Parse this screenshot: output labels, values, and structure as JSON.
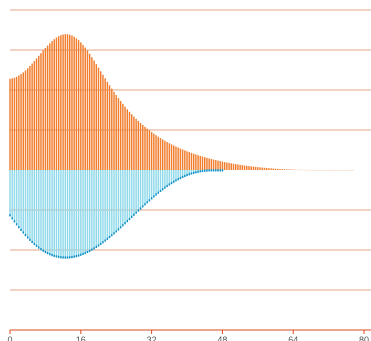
{
  "chart_data": {
    "type": "bar",
    "title": "",
    "xlabel": "",
    "ylabel": "",
    "xlim": [
      0,
      80
    ],
    "grid": true,
    "x_ticks": [
      "0",
      "16",
      "32",
      "48",
      "64",
      "80"
    ],
    "series": [
      {
        "x_start": 0,
        "x_step": 0.5,
        "values": [
          0.3442,
          0.3456,
          0.3482,
          0.3518,
          0.3564,
          0.362,
          0.3685,
          0.3758,
          0.3838,
          0.3925,
          0.4016,
          0.4112,
          0.421,
          0.431,
          0.441,
          0.4509,
          0.4605,
          0.4697,
          0.4784,
          0.4864,
          0.4935,
          0.4997,
          0.5048,
          0.5087,
          0.5113,
          0.5125,
          0.5123,
          0.5106,
          0.5075,
          0.503,
          0.4971,
          0.49,
          0.4816,
          0.4721,
          0.4617,
          0.4504,
          0.4384,
          0.4258,
          0.4128,
          0.3995,
          0.3861,
          0.3726,
          0.3591,
          0.3457,
          0.3326,
          0.3196,
          0.307,
          0.2948,
          0.2829,
          0.2714,
          0.2603,
          0.2495,
          0.2392,
          0.2293,
          0.2197,
          0.2106,
          0.2018,
          0.1933,
          0.1852,
          0.1774,
          0.17,
          0.1628,
          0.156,
          0.1494,
          0.1431,
          0.1371,
          0.1313,
          0.1257,
          0.1204,
          0.1153,
          0.1103,
          0.1056,
          0.1011,
          0.0968,
          0.0926,
          0.0886,
          0.0847,
          0.081,
          0.0774,
          0.074,
          0.0707,
          0.0675,
          0.0644,
          0.0615,
          0.0586,
          0.0559,
          0.0533,
          0.0507,
          0.0483,
          0.0459,
          0.0436,
          0.0415,
          0.0393,
          0.0373,
          0.0354,
          0.0335,
          0.0317,
          0.0299,
          0.0283,
          0.0267,
          0.0251,
          0.0236,
          0.0222,
          0.0208,
          0.0195,
          0.0182,
          0.017,
          0.0159,
          0.0148,
          0.0137,
          0.0127,
          0.0117,
          0.0108,
          0.0099,
          0.0091,
          0.0083,
          0.0075,
          0.0068,
          0.0061,
          0.0055,
          0.0049,
          0.0043,
          0.0038,
          0.0033,
          0.0029,
          0.0025,
          0.0021,
          0.0018,
          0.0015,
          0.0012,
          0.001,
          0.0008,
          0.0006,
          0.0005,
          0.0004,
          0.0003,
          0.0002,
          0.0002,
          0.0001,
          0.0001,
          0.0001,
          0.0001,
          0.0001,
          0.0001,
          0.0001,
          0.0001,
          0.0001,
          0.0001,
          0.0001,
          0.0001,
          0.0001,
          0.0001,
          0.0001,
          0.0001,
          0.0001,
          0.0001
        ],
        "color": "#f07c2c"
      },
      {
        "x_start": 0,
        "x_step": 0.5,
        "values": [
          -0.175,
          -0.1865,
          -0.1978,
          -0.2089,
          -0.2196,
          -0.23,
          -0.24,
          -0.2496,
          -0.2587,
          -0.2674,
          -0.2755,
          -0.2832,
          -0.2903,
          -0.2969,
          -0.303,
          -0.3085,
          -0.3135,
          -0.3179,
          -0.3218,
          -0.3252,
          -0.328,
          -0.3303,
          -0.3321,
          -0.3334,
          -0.3342,
          -0.3345,
          -0.3343,
          -0.3337,
          -0.3326,
          -0.3311,
          -0.3291,
          -0.3268,
          -0.324,
          -0.3208,
          -0.3173,
          -0.3134,
          -0.3091,
          -0.3045,
          -0.2996,
          -0.2943,
          -0.2888,
          -0.2829,
          -0.2768,
          -0.2705,
          -0.2639,
          -0.2571,
          -0.2501,
          -0.2429,
          -0.2356,
          -0.2281,
          -0.2204,
          -0.2127,
          -0.2049,
          -0.1969,
          -0.189,
          -0.181,
          -0.173,
          -0.165,
          -0.157,
          -0.1491,
          -0.1413,
          -0.1335,
          -0.1259,
          -0.1184,
          -0.111,
          -0.1038,
          -0.0967,
          -0.0899,
          -0.0832,
          -0.0767,
          -0.0705,
          -0.0645,
          -0.0588,
          -0.0533,
          -0.0481,
          -0.0432,
          -0.0386,
          -0.0343,
          -0.0303,
          -0.0266,
          -0.0232,
          -0.0201,
          -0.0173,
          -0.0148,
          -0.0126,
          -0.0107,
          -0.0091,
          -0.0078,
          -0.0068,
          -0.0061,
          -0.0057,
          -0.0055,
          -0.0055,
          -0.0055,
          -0.0055,
          -0.0055,
          -0.0055
        ],
        "color": "#8fd9ea",
        "edge_color": "#0e8fc5"
      }
    ]
  }
}
